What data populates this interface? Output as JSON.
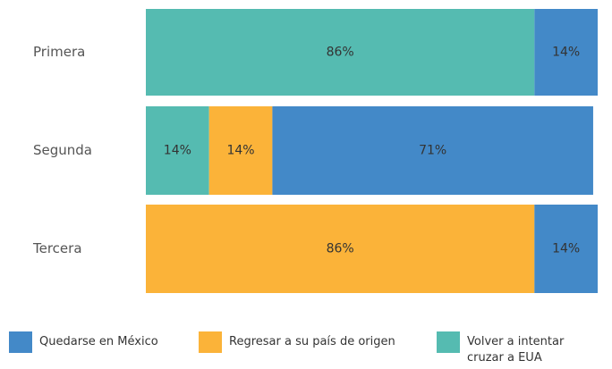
{
  "chart_data": {
    "type": "stacked_bar_horizontal",
    "categories": [
      "Primera",
      "Segunda",
      "Tercera"
    ],
    "series": [
      {
        "name": "Quedarse en México",
        "color": "#4389c8",
        "values": [
          14,
          71,
          14
        ],
        "value_labels": [
          "14%",
          "71%",
          "14%"
        ]
      },
      {
        "name": "Regresar a su país de origen",
        "color": "#fbb339",
        "values": [
          0,
          14,
          86
        ],
        "value_labels": [
          null,
          "14%",
          "86%"
        ]
      },
      {
        "name": "Volver a intentar cruzar a EUA",
        "color": "#55bbb1",
        "values": [
          86,
          14,
          0
        ],
        "value_labels": [
          "86%",
          "14%",
          null
        ]
      }
    ],
    "xlim": [
      0,
      100
    ]
  }
}
